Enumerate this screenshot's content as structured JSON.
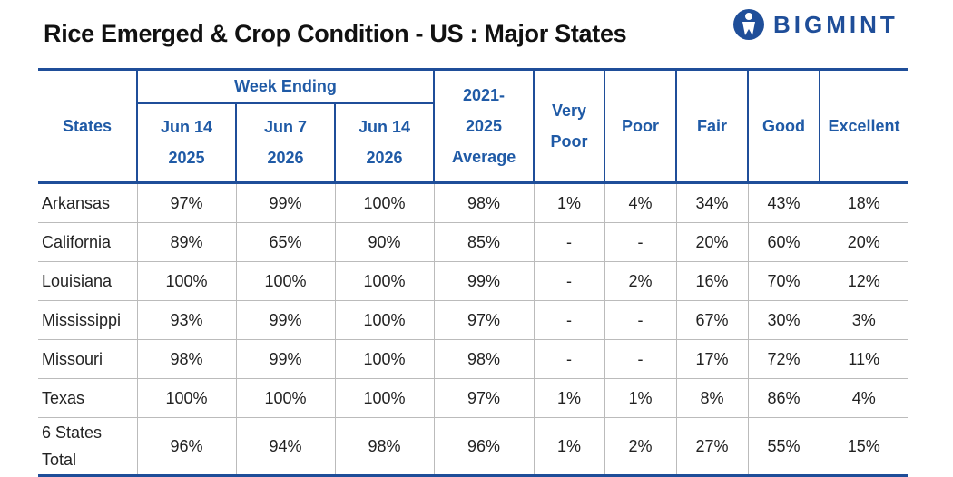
{
  "header": {
    "title": "Rice Emerged & Crop Condition - US : Major States",
    "logo": "BIGMINT"
  },
  "table": {
    "group_label": "Week Ending",
    "columns": [
      [
        "States"
      ],
      [
        "Jun 14",
        "2025"
      ],
      [
        "Jun 7",
        "2026"
      ],
      [
        "Jun 14",
        "2026"
      ],
      [
        "2021-",
        "2025",
        "Average"
      ],
      [
        "Very",
        "Poor"
      ],
      [
        "Poor"
      ],
      [
        "Fair"
      ],
      [
        "Good"
      ],
      [
        "Excellent"
      ]
    ],
    "rows": [
      [
        "Arkansas",
        "97%",
        "99%",
        "100%",
        "98%",
        "1%",
        "4%",
        "34%",
        "43%",
        "18%"
      ],
      [
        "California",
        "89%",
        "65%",
        "90%",
        "85%",
        "-",
        "-",
        "20%",
        "60%",
        "20%"
      ],
      [
        "Louisiana",
        "100%",
        "100%",
        "100%",
        "99%",
        "-",
        "2%",
        "16%",
        "70%",
        "12%"
      ],
      [
        "Mississippi",
        "93%",
        "99%",
        "100%",
        "97%",
        "-",
        "-",
        "67%",
        "30%",
        "3%"
      ],
      [
        "Missouri",
        "98%",
        "99%",
        "100%",
        "98%",
        "-",
        "-",
        "17%",
        "72%",
        "11%"
      ],
      [
        "Texas",
        "100%",
        "100%",
        "100%",
        "97%",
        "1%",
        "1%",
        "8%",
        "86%",
        "4%"
      ],
      [
        "6 States Total",
        "96%",
        "94%",
        "98%",
        "96%",
        "1%",
        "2%",
        "27%",
        "55%",
        "15%"
      ]
    ]
  }
}
